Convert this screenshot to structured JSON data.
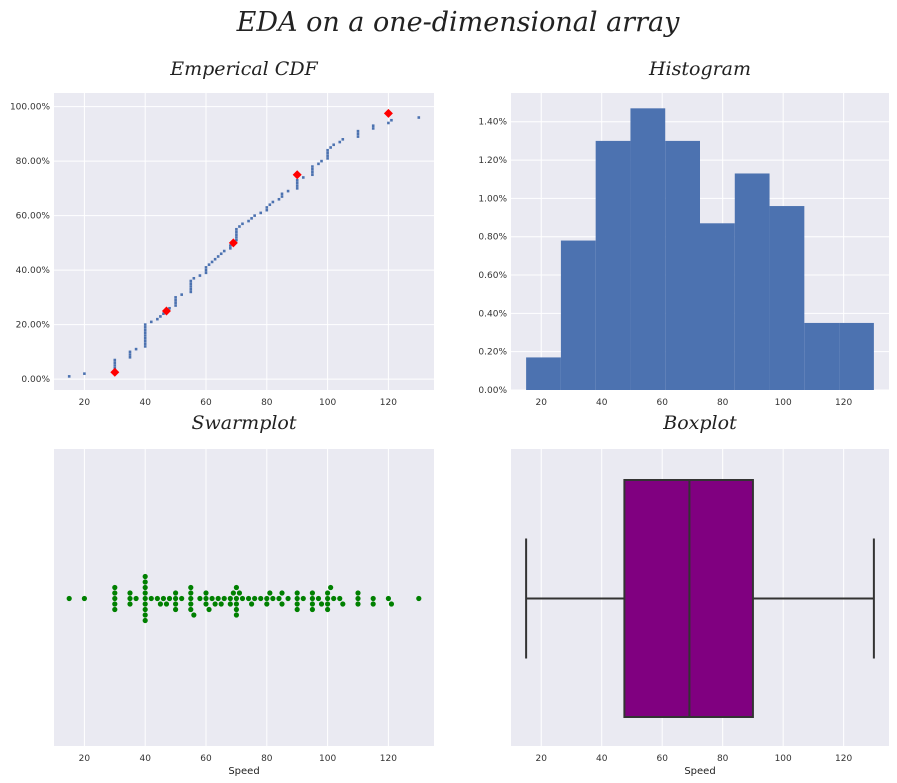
{
  "figure": {
    "title": "EDA on a one-dimensional array"
  },
  "chart_data": [
    {
      "id": "ecdf",
      "type": "scatter",
      "title": "Emperical CDF",
      "xlim": [
        10,
        135
      ],
      "ylim": [
        -0.04,
        1.05
      ],
      "xticks": [
        20,
        40,
        60,
        80,
        100,
        120
      ],
      "yticks": [
        0,
        0.2,
        0.4,
        0.6,
        0.8,
        1.0
      ],
      "ytick_labels": [
        "0.00%",
        "20.00%",
        "40.00%",
        "60.00%",
        "80.00%",
        "100.00%"
      ],
      "grid": true,
      "point_color": "#4c72b0",
      "x": [
        15,
        20,
        30,
        30,
        30,
        30,
        30,
        35,
        35,
        35,
        37,
        40,
        40,
        40,
        40,
        40,
        40,
        40,
        40,
        40,
        42,
        44,
        45,
        46,
        47,
        48,
        50,
        50,
        50,
        50,
        52,
        55,
        55,
        55,
        55,
        55,
        56,
        58,
        60,
        60,
        60,
        61,
        62,
        63,
        64,
        65,
        66,
        68,
        68,
        69,
        70,
        70,
        70,
        70,
        70,
        71,
        72,
        74,
        75,
        76,
        78,
        80,
        80,
        81,
        82,
        84,
        85,
        85,
        87,
        90,
        90,
        90,
        90,
        92,
        95,
        95,
        95,
        95,
        97,
        98,
        100,
        100,
        100,
        100,
        101,
        102,
        104,
        105,
        110,
        110,
        110,
        115,
        115,
        120,
        121,
        130
      ],
      "y": [
        0.01,
        0.02,
        0.03,
        0.04,
        0.05,
        0.06,
        0.07,
        0.08,
        0.09,
        0.1,
        0.11,
        0.12,
        0.13,
        0.14,
        0.15,
        0.16,
        0.17,
        0.18,
        0.19,
        0.2,
        0.21,
        0.22,
        0.23,
        0.24,
        0.25,
        0.26,
        0.27,
        0.28,
        0.29,
        0.3,
        0.31,
        0.32,
        0.33,
        0.34,
        0.35,
        0.36,
        0.37,
        0.38,
        0.39,
        0.4,
        0.41,
        0.42,
        0.43,
        0.44,
        0.45,
        0.46,
        0.47,
        0.48,
        0.49,
        0.5,
        0.51,
        0.52,
        0.53,
        0.54,
        0.55,
        0.56,
        0.57,
        0.58,
        0.59,
        0.6,
        0.61,
        0.62,
        0.63,
        0.64,
        0.65,
        0.66,
        0.67,
        0.68,
        0.69,
        0.7,
        0.71,
        0.72,
        0.73,
        0.74,
        0.75,
        0.76,
        0.77,
        0.78,
        0.79,
        0.8,
        0.81,
        0.82,
        0.83,
        0.84,
        0.85,
        0.86,
        0.87,
        0.88,
        0.89,
        0.9,
        0.91,
        0.92,
        0.93,
        0.94,
        0.95,
        0.96
      ],
      "percentiles": {
        "color": "#ff0000",
        "x": [
          30,
          47,
          69,
          90,
          120
        ],
        "y": [
          0.025,
          0.25,
          0.5,
          0.75,
          0.975
        ]
      }
    },
    {
      "id": "hist",
      "type": "bar",
      "title": "Histogram",
      "xlim": [
        10,
        135
      ],
      "ylim": [
        0,
        0.0155
      ],
      "xticks": [
        20,
        40,
        60,
        80,
        100,
        120
      ],
      "yticks": [
        0,
        0.002,
        0.004,
        0.006,
        0.008,
        0.01,
        0.012,
        0.014
      ],
      "ytick_labels": [
        "0.00%",
        "0.20%",
        "0.40%",
        "0.60%",
        "0.80%",
        "1.00%",
        "1.20%",
        "1.40%"
      ],
      "grid": true,
      "bar_color": "#4c72b0",
      "bin_edges": [
        15,
        26.5,
        38,
        49.5,
        61,
        72.5,
        84,
        95.5,
        107,
        118.5,
        130
      ],
      "values": [
        0.0017,
        0.0078,
        0.013,
        0.0147,
        0.013,
        0.0087,
        0.0113,
        0.0096,
        0.0035,
        0.0035
      ]
    },
    {
      "id": "swarm",
      "type": "scatter",
      "title": "Swarmplot",
      "xlabel": "Speed",
      "xlim": [
        10,
        135
      ],
      "xticks": [
        20,
        40,
        60,
        80,
        100,
        120
      ],
      "grid": true,
      "point_color": "#008000",
      "x": [
        15,
        20,
        30,
        30,
        30,
        30,
        30,
        35,
        35,
        35,
        37,
        40,
        40,
        40,
        40,
        40,
        40,
        40,
        40,
        40,
        42,
        44,
        45,
        46,
        47,
        48,
        50,
        50,
        50,
        50,
        52,
        55,
        55,
        55,
        55,
        55,
        56,
        58,
        60,
        60,
        60,
        61,
        62,
        63,
        64,
        65,
        66,
        68,
        68,
        69,
        70,
        70,
        70,
        70,
        70,
        71,
        72,
        74,
        75,
        76,
        78,
        80,
        80,
        81,
        82,
        84,
        85,
        85,
        87,
        90,
        90,
        90,
        90,
        92,
        95,
        95,
        95,
        95,
        97,
        98,
        100,
        100,
        100,
        100,
        101,
        102,
        104,
        105,
        110,
        110,
        110,
        115,
        115,
        120,
        121,
        130
      ]
    },
    {
      "id": "box",
      "type": "box",
      "title": "Boxplot",
      "xlabel": "Speed",
      "xlim": [
        10,
        135
      ],
      "xticks": [
        20,
        40,
        60,
        80,
        100,
        120
      ],
      "grid": true,
      "box_color": "#800080",
      "min": 15,
      "q1": 47.5,
      "median": 69,
      "q3": 90,
      "max": 130
    }
  ]
}
